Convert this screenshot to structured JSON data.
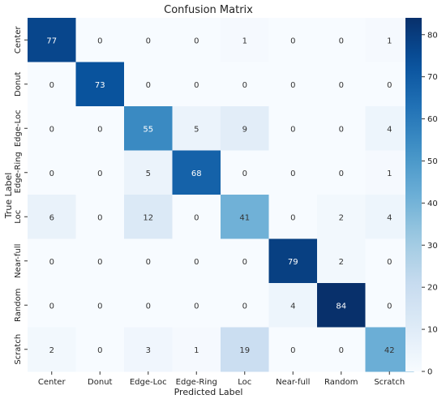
{
  "chart_data": {
    "type": "heatmap",
    "title": "Confusion Matrix",
    "xlabel": "Predicted Label",
    "ylabel": "True Label",
    "x_categories": [
      "Center",
      "Donut",
      "Edge-Loc",
      "Edge-Ring",
      "Loc",
      "Near-full",
      "Random",
      "Scratch"
    ],
    "y_categories": [
      "Center",
      "Donut",
      "Edge-Loc",
      "Edge-Ring",
      "Loc",
      "Near-full",
      "Random",
      "Scratch"
    ],
    "values": [
      [
        77,
        0,
        0,
        0,
        1,
        0,
        0,
        1
      ],
      [
        0,
        73,
        0,
        0,
        0,
        0,
        0,
        0
      ],
      [
        0,
        0,
        55,
        5,
        9,
        0,
        0,
        4
      ],
      [
        0,
        0,
        5,
        68,
        0,
        0,
        0,
        1
      ],
      [
        6,
        0,
        12,
        0,
        41,
        0,
        2,
        4
      ],
      [
        0,
        0,
        0,
        0,
        0,
        79,
        2,
        0
      ],
      [
        0,
        0,
        0,
        0,
        0,
        4,
        84,
        0
      ],
      [
        2,
        0,
        3,
        1,
        19,
        0,
        0,
        42
      ]
    ],
    "colormap": "Blues",
    "vmin": 0,
    "vmax": 84,
    "colorbar_ticks": [
      0,
      10,
      20,
      30,
      40,
      50,
      60,
      70,
      80
    ]
  }
}
